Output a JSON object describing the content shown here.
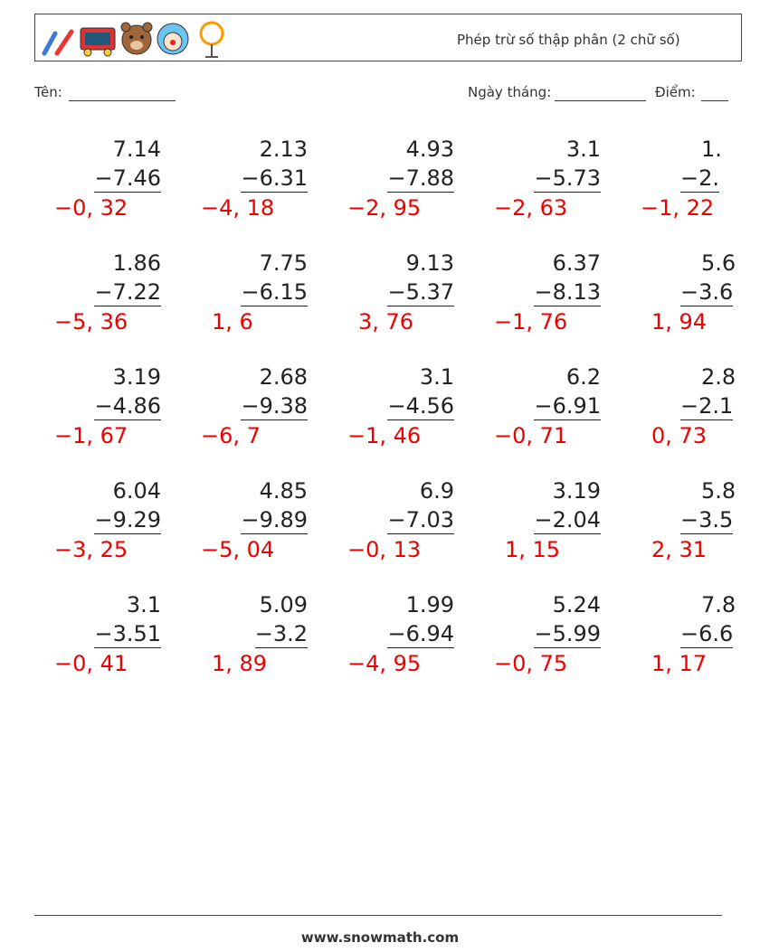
{
  "header": {
    "title": "Phép trừ số thập phân (2 chữ số)"
  },
  "fields": {
    "name": "Tên:",
    "date": "Ngày tháng:",
    "score": "Điểm:"
  },
  "problems": [
    [
      {
        "top": "7.14",
        "bottom": "−7.46",
        "answer": "−0, 32"
      },
      {
        "top": "2.13",
        "bottom": "−6.31",
        "answer": "−4, 18"
      },
      {
        "top": "4.93",
        "bottom": "−7.88",
        "answer": "−2, 95"
      },
      {
        "top": "3.1",
        "bottom": "−5.73",
        "answer": "−2, 63"
      },
      {
        "top": "1.",
        "bottom": "−2.",
        "answer": "−1, 22"
      }
    ],
    [
      {
        "top": "1.86",
        "bottom": "−7.22",
        "answer": "−5, 36"
      },
      {
        "top": "7.75",
        "bottom": "−6.15",
        "answer": "1, 6"
      },
      {
        "top": "9.13",
        "bottom": "−5.37",
        "answer": "3, 76"
      },
      {
        "top": "6.37",
        "bottom": "−8.13",
        "answer": "−1, 76"
      },
      {
        "top": "5.6",
        "bottom": "−3.6",
        "answer": "1, 94"
      }
    ],
    [
      {
        "top": "3.19",
        "bottom": "−4.86",
        "answer": "−1, 67"
      },
      {
        "top": "2.68",
        "bottom": "−9.38",
        "answer": "−6, 7"
      },
      {
        "top": "3.1",
        "bottom": "−4.56",
        "answer": "−1, 46"
      },
      {
        "top": "6.2",
        "bottom": "−6.91",
        "answer": "−0, 71"
      },
      {
        "top": "2.8",
        "bottom": "−2.1",
        "answer": "0, 73"
      }
    ],
    [
      {
        "top": "6.04",
        "bottom": "−9.29",
        "answer": "−3, 25"
      },
      {
        "top": "4.85",
        "bottom": "−9.89",
        "answer": "−5, 04"
      },
      {
        "top": "6.9",
        "bottom": "−7.03",
        "answer": "−0, 13"
      },
      {
        "top": "3.19",
        "bottom": "−2.04",
        "answer": "1, 15"
      },
      {
        "top": "5.8",
        "bottom": "−3.5",
        "answer": "2, 31"
      }
    ],
    [
      {
        "top": "3.1",
        "bottom": "−3.51",
        "answer": "−0, 41"
      },
      {
        "top": "5.09",
        "bottom": "−3.2",
        "answer": "1, 89"
      },
      {
        "top": "1.99",
        "bottom": "−6.94",
        "answer": "−4, 95"
      },
      {
        "top": "5.24",
        "bottom": "−5.99",
        "answer": "−0, 75"
      },
      {
        "top": "7.8",
        "bottom": "−6.6",
        "answer": "1, 17"
      }
    ]
  ],
  "footer": {
    "website": "www.snowmath.com"
  }
}
